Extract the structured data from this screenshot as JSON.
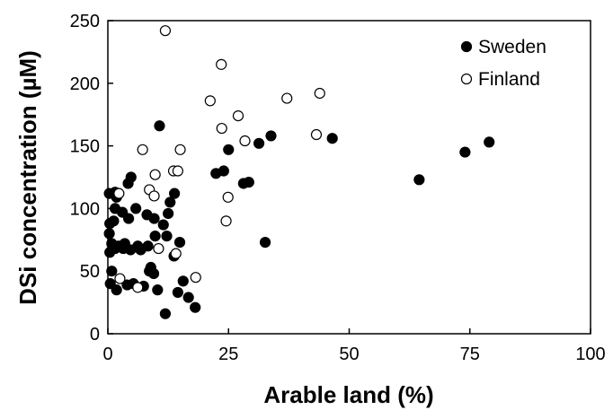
{
  "chart_data": {
    "type": "scatter",
    "title": "",
    "xlabel": "Arable land (%)",
    "ylabel": "DSi concentration (µM)",
    "xlim": [
      0,
      100
    ],
    "ylim": [
      0,
      250
    ],
    "xticks": [
      "0",
      "25",
      "50",
      "75",
      "100"
    ],
    "yticks": [
      "0",
      "50",
      "100",
      "150",
      "200",
      "250"
    ],
    "grid": false,
    "legend_position": "top-right",
    "series": [
      {
        "name": "Sweden",
        "marker": "filled-circle",
        "color": "#000000",
        "points": [
          [
            0.3,
            112
          ],
          [
            1.5,
            113
          ],
          [
            1.8,
            109
          ],
          [
            0.4,
            88
          ],
          [
            1.2,
            90
          ],
          [
            0.3,
            80
          ],
          [
            0.8,
            72
          ],
          [
            1.5,
            68
          ],
          [
            2.2,
            70
          ],
          [
            3.2,
            68
          ],
          [
            3.5,
            72
          ],
          [
            0.4,
            65
          ],
          [
            0.8,
            50
          ],
          [
            0.5,
            40
          ],
          [
            1.8,
            35
          ],
          [
            1.5,
            100
          ],
          [
            3.0,
            97
          ],
          [
            4.2,
            120
          ],
          [
            4.8,
            125
          ],
          [
            4.3,
            92
          ],
          [
            4.7,
            67
          ],
          [
            5.8,
            100
          ],
          [
            6.2,
            70
          ],
          [
            6.8,
            67
          ],
          [
            7.4,
            38
          ],
          [
            5.3,
            40
          ],
          [
            4.0,
            39
          ],
          [
            8.1,
            95
          ],
          [
            8.3,
            70
          ],
          [
            8.9,
            53
          ],
          [
            8.6,
            50
          ],
          [
            9.6,
            92
          ],
          [
            9.8,
            78
          ],
          [
            9.5,
            48
          ],
          [
            10.3,
            35
          ],
          [
            10.7,
            166
          ],
          [
            11.5,
            87
          ],
          [
            12.2,
            78
          ],
          [
            12.5,
            96
          ],
          [
            12.9,
            105
          ],
          [
            13.8,
            112
          ],
          [
            13.7,
            62
          ],
          [
            14.5,
            33
          ],
          [
            14.9,
            73
          ],
          [
            15.6,
            42
          ],
          [
            16.7,
            29
          ],
          [
            11.9,
            16
          ],
          [
            18.1,
            21
          ],
          [
            22.4,
            128
          ],
          [
            24.0,
            130
          ],
          [
            25.0,
            147
          ],
          [
            28.1,
            120
          ],
          [
            29.2,
            121
          ],
          [
            31.3,
            152
          ],
          [
            33.8,
            158
          ],
          [
            32.6,
            73
          ],
          [
            46.5,
            156
          ],
          [
            64.5,
            123
          ],
          [
            74.0,
            145
          ],
          [
            79.0,
            153
          ]
        ]
      },
      {
        "name": "Finland",
        "marker": "open-circle",
        "color": "#000000",
        "points": [
          [
            11.9,
            242
          ],
          [
            23.5,
            215
          ],
          [
            21.2,
            186
          ],
          [
            27.0,
            174
          ],
          [
            23.6,
            164
          ],
          [
            28.4,
            154
          ],
          [
            37.1,
            188
          ],
          [
            43.9,
            192
          ],
          [
            43.2,
            159
          ],
          [
            7.2,
            147
          ],
          [
            15.0,
            147
          ],
          [
            13.6,
            130
          ],
          [
            14.5,
            130
          ],
          [
            9.8,
            127
          ],
          [
            8.6,
            115
          ],
          [
            9.6,
            110
          ],
          [
            24.9,
            109
          ],
          [
            24.5,
            90
          ],
          [
            2.3,
            112
          ],
          [
            10.5,
            68
          ],
          [
            14.1,
            64
          ],
          [
            2.5,
            44
          ],
          [
            6.2,
            37
          ],
          [
            18.2,
            45
          ]
        ]
      }
    ]
  }
}
